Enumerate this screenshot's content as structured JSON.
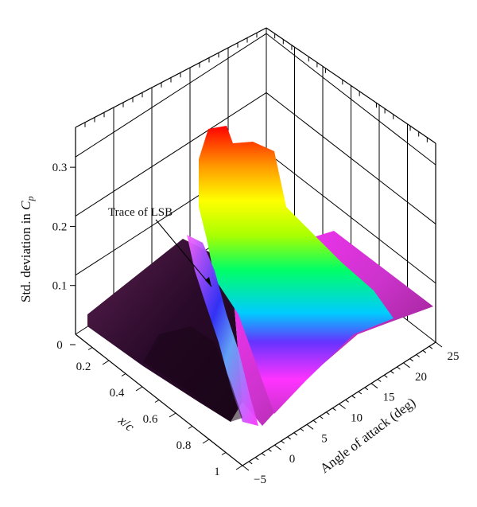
{
  "chart_data": {
    "type": "surface3d",
    "zlabel_text": "Std. deviation in ",
    "zlabel_symbol": "C",
    "zlabel_sub": "p",
    "xlabel_x": "x",
    "xlabel_slash": "/",
    "xlabel_c": "c",
    "ylabel": "Angle of attack (deg)",
    "z_ticks": [
      "0",
      "0.1",
      "0.2",
      "0.3"
    ],
    "xc_ticks": [
      "0.2",
      "0.4",
      "0.6",
      "0.8",
      "1"
    ],
    "aoa_ticks": [
      "−5",
      "0",
      "5",
      "10",
      "15",
      "20",
      "25"
    ],
    "z_range": [
      0,
      0.35
    ],
    "xc_range": [
      0,
      1
    ],
    "aoa_range": [
      -5,
      25
    ],
    "annotation": {
      "text": "Trace of LSB",
      "color": "#8b1a1a"
    },
    "colormap": [
      "#2a0a2a",
      "#6a1a5a",
      "#cc33cc",
      "#ff33ff",
      "#3333ff",
      "#00ccff",
      "#00ff66",
      "#aaff00",
      "#ffff00",
      "#ff9900",
      "#ff0000"
    ],
    "surface_features": {
      "description_free": true,
      "ridge_peak_std": 0.34,
      "lsb_band_std": 0.1
    }
  }
}
